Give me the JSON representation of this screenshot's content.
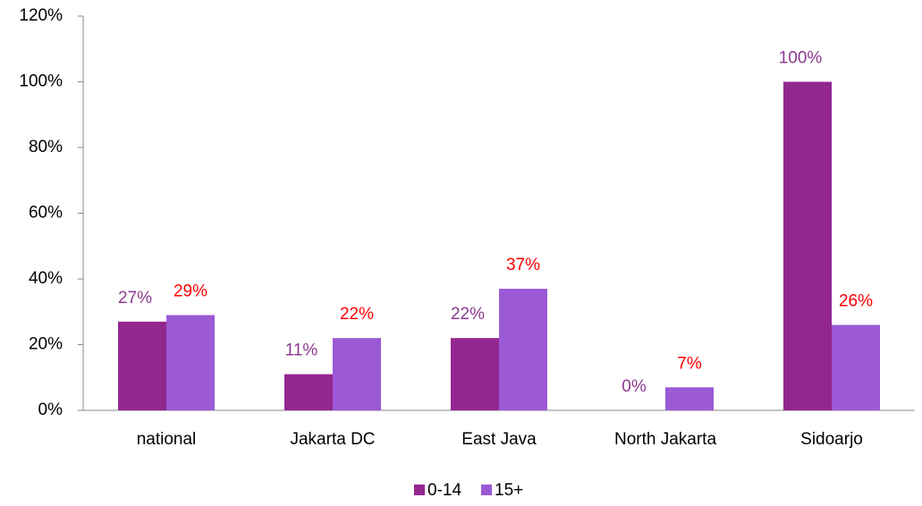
{
  "chart_data": {
    "type": "bar",
    "categories": [
      "national",
      "Jakarta DC",
      "East Java",
      "North Jakarta",
      "Sidoarjo"
    ],
    "series": [
      {
        "name": "0-14",
        "color": "#92278f",
        "label_color": "#8b3a8f",
        "values": [
          27,
          11,
          22,
          0,
          100
        ],
        "value_labels": [
          "27%",
          "11%",
          "22%",
          "0%",
          "100%"
        ]
      },
      {
        "name": "15+",
        "color": "#9b59d6",
        "label_color": "#ff0000",
        "values": [
          29,
          22,
          37,
          7,
          26
        ],
        "value_labels": [
          "29%",
          "22%",
          "37%",
          "7%",
          "26%"
        ]
      }
    ],
    "ylim": [
      0,
      120
    ],
    "yticks": [
      {
        "value": 0,
        "label": "0%"
      },
      {
        "value": 20,
        "label": "20%"
      },
      {
        "value": 40,
        "label": "40%"
      },
      {
        "value": 60,
        "label": "60%"
      },
      {
        "value": 80,
        "label": "80%"
      },
      {
        "value": 100,
        "label": "100%"
      },
      {
        "value": 120,
        "label": "120%"
      }
    ],
    "grid": false,
    "legend": "bottom"
  }
}
